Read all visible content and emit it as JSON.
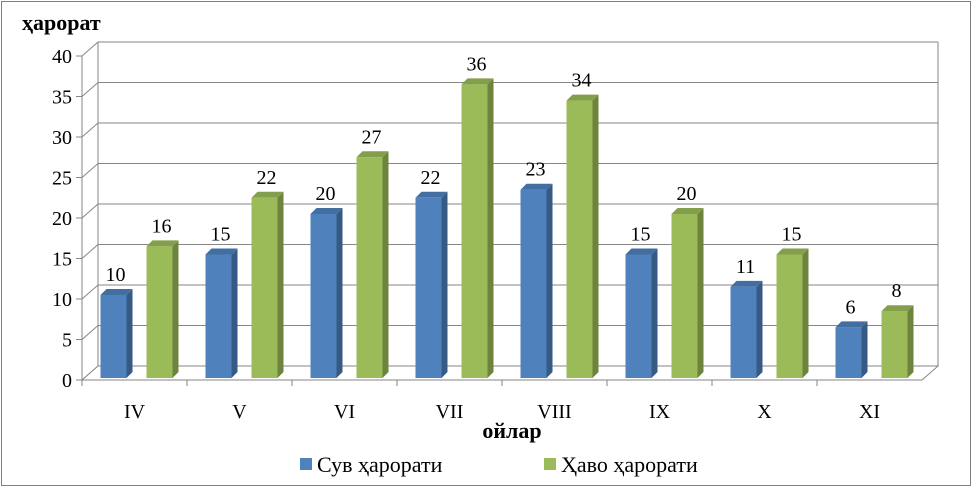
{
  "chart_data": {
    "type": "bar",
    "ylabel": "ҳарорат",
    "xlabel": "ойлар",
    "categories": [
      "IV",
      "V",
      "VI",
      "VII",
      "VIII",
      "IX",
      "X",
      "XI"
    ],
    "series": [
      {
        "name": "Сув ҳарорати",
        "values": [
          10,
          15,
          20,
          22,
          23,
          15,
          11,
          6
        ],
        "color": "#4f81bd"
      },
      {
        "name": "Ҳаво ҳарорати",
        "values": [
          16,
          22,
          27,
          36,
          34,
          20,
          15,
          8
        ],
        "color": "#9bbb59"
      }
    ],
    "ylim": [
      0,
      40
    ],
    "yticks": [
      "0",
      "5",
      "10",
      "15",
      "20",
      "25",
      "30",
      "35",
      "40"
    ],
    "grid": true,
    "legend": "bottom",
    "style": "3d-clustered-column"
  }
}
